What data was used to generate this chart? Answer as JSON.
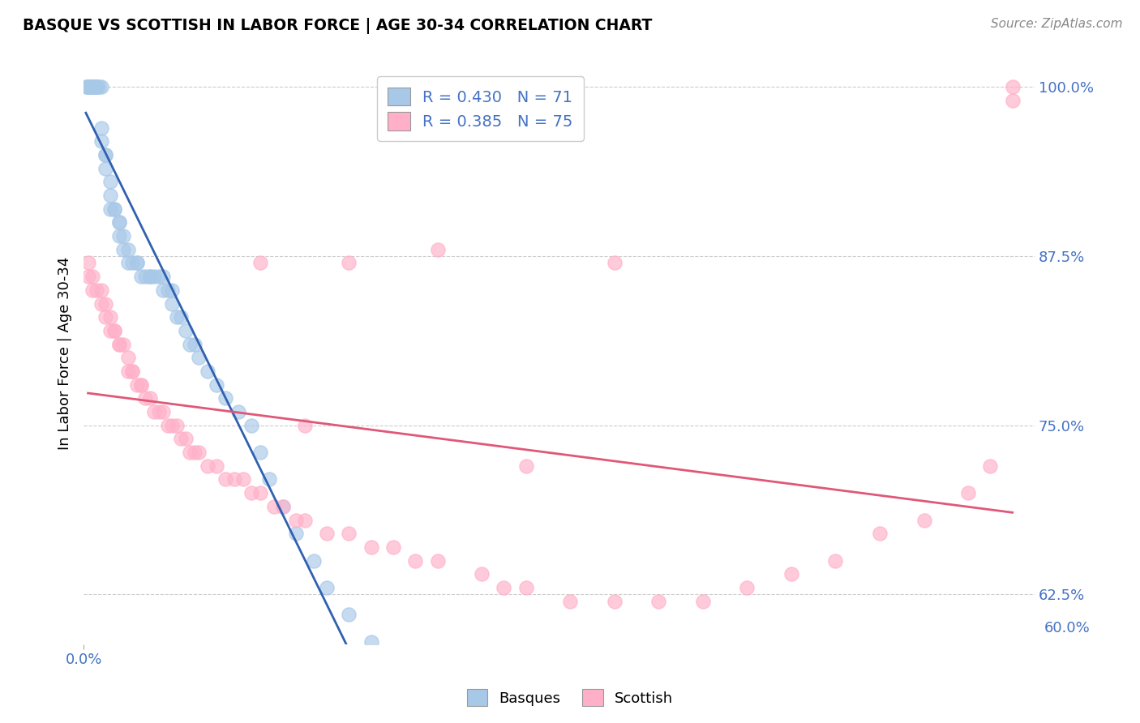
{
  "title": "BASQUE VS SCOTTISH IN LABOR FORCE | AGE 30-34 CORRELATION CHART",
  "source_text": "Source: ZipAtlas.com",
  "ylabel": "In Labor Force | Age 30-34",
  "basque_R": 0.43,
  "basque_N": 71,
  "scottish_R": 0.385,
  "scottish_N": 75,
  "xmin": 0.0,
  "xmax": 0.215,
  "ymin": 0.588,
  "ymax": 1.018,
  "ytick_vals": [
    0.625,
    0.75,
    0.875,
    1.0
  ],
  "ytick_labels": [
    "62.5%",
    "75.0%",
    "87.5%",
    "100.0%"
  ],
  "xtick_label": "0.0%",
  "bottom_tick_label": "60.0%",
  "basque_color": "#a8c8e8",
  "scottish_color": "#ffb0c8",
  "basque_line_color": "#3060b0",
  "scottish_line_color": "#e05878",
  "legend_text_color": "#4472c4",
  "basque_x": [
    0.0005,
    0.001,
    0.001,
    0.001,
    0.001,
    0.001,
    0.0015,
    0.0015,
    0.002,
    0.002,
    0.002,
    0.002,
    0.002,
    0.002,
    0.0025,
    0.003,
    0.003,
    0.003,
    0.003,
    0.0035,
    0.004,
    0.004,
    0.004,
    0.005,
    0.005,
    0.005,
    0.006,
    0.006,
    0.006,
    0.007,
    0.007,
    0.008,
    0.008,
    0.008,
    0.009,
    0.009,
    0.01,
    0.01,
    0.011,
    0.012,
    0.012,
    0.013,
    0.014,
    0.015,
    0.015,
    0.016,
    0.017,
    0.018,
    0.018,
    0.019,
    0.02,
    0.02,
    0.021,
    0.022,
    0.023,
    0.024,
    0.025,
    0.026,
    0.028,
    0.03,
    0.032,
    0.035,
    0.038,
    0.04,
    0.042,
    0.045,
    0.048,
    0.052,
    0.055,
    0.06,
    0.065
  ],
  "basque_y": [
    1.0,
    1.0,
    1.0,
    1.0,
    1.0,
    1.0,
    1.0,
    1.0,
    1.0,
    1.0,
    1.0,
    1.0,
    1.0,
    1.0,
    1.0,
    1.0,
    1.0,
    1.0,
    1.0,
    1.0,
    1.0,
    0.97,
    0.96,
    0.95,
    0.95,
    0.94,
    0.93,
    0.92,
    0.91,
    0.91,
    0.91,
    0.9,
    0.9,
    0.89,
    0.89,
    0.88,
    0.88,
    0.87,
    0.87,
    0.87,
    0.87,
    0.86,
    0.86,
    0.86,
    0.86,
    0.86,
    0.86,
    0.86,
    0.85,
    0.85,
    0.85,
    0.84,
    0.83,
    0.83,
    0.82,
    0.81,
    0.81,
    0.8,
    0.79,
    0.78,
    0.77,
    0.76,
    0.75,
    0.73,
    0.71,
    0.69,
    0.67,
    0.65,
    0.63,
    0.61,
    0.59
  ],
  "scottish_x": [
    0.001,
    0.001,
    0.002,
    0.002,
    0.003,
    0.004,
    0.004,
    0.005,
    0.005,
    0.006,
    0.006,
    0.007,
    0.007,
    0.008,
    0.008,
    0.009,
    0.01,
    0.01,
    0.011,
    0.011,
    0.012,
    0.013,
    0.013,
    0.014,
    0.015,
    0.016,
    0.017,
    0.018,
    0.019,
    0.02,
    0.021,
    0.022,
    0.023,
    0.024,
    0.025,
    0.026,
    0.028,
    0.03,
    0.032,
    0.034,
    0.036,
    0.038,
    0.04,
    0.043,
    0.045,
    0.048,
    0.05,
    0.055,
    0.06,
    0.065,
    0.07,
    0.075,
    0.08,
    0.09,
    0.095,
    0.1,
    0.11,
    0.12,
    0.13,
    0.14,
    0.15,
    0.16,
    0.17,
    0.18,
    0.19,
    0.2,
    0.205,
    0.21,
    0.21,
    0.1,
    0.04,
    0.06,
    0.08,
    0.12,
    0.05
  ],
  "scottish_y": [
    0.87,
    0.86,
    0.86,
    0.85,
    0.85,
    0.85,
    0.84,
    0.84,
    0.83,
    0.83,
    0.82,
    0.82,
    0.82,
    0.81,
    0.81,
    0.81,
    0.8,
    0.79,
    0.79,
    0.79,
    0.78,
    0.78,
    0.78,
    0.77,
    0.77,
    0.76,
    0.76,
    0.76,
    0.75,
    0.75,
    0.75,
    0.74,
    0.74,
    0.73,
    0.73,
    0.73,
    0.72,
    0.72,
    0.71,
    0.71,
    0.71,
    0.7,
    0.7,
    0.69,
    0.69,
    0.68,
    0.68,
    0.67,
    0.67,
    0.66,
    0.66,
    0.65,
    0.65,
    0.64,
    0.63,
    0.63,
    0.62,
    0.62,
    0.62,
    0.62,
    0.63,
    0.64,
    0.65,
    0.67,
    0.68,
    0.7,
    0.72,
    1.0,
    0.99,
    0.72,
    0.87,
    0.87,
    0.88,
    0.87,
    0.75
  ]
}
